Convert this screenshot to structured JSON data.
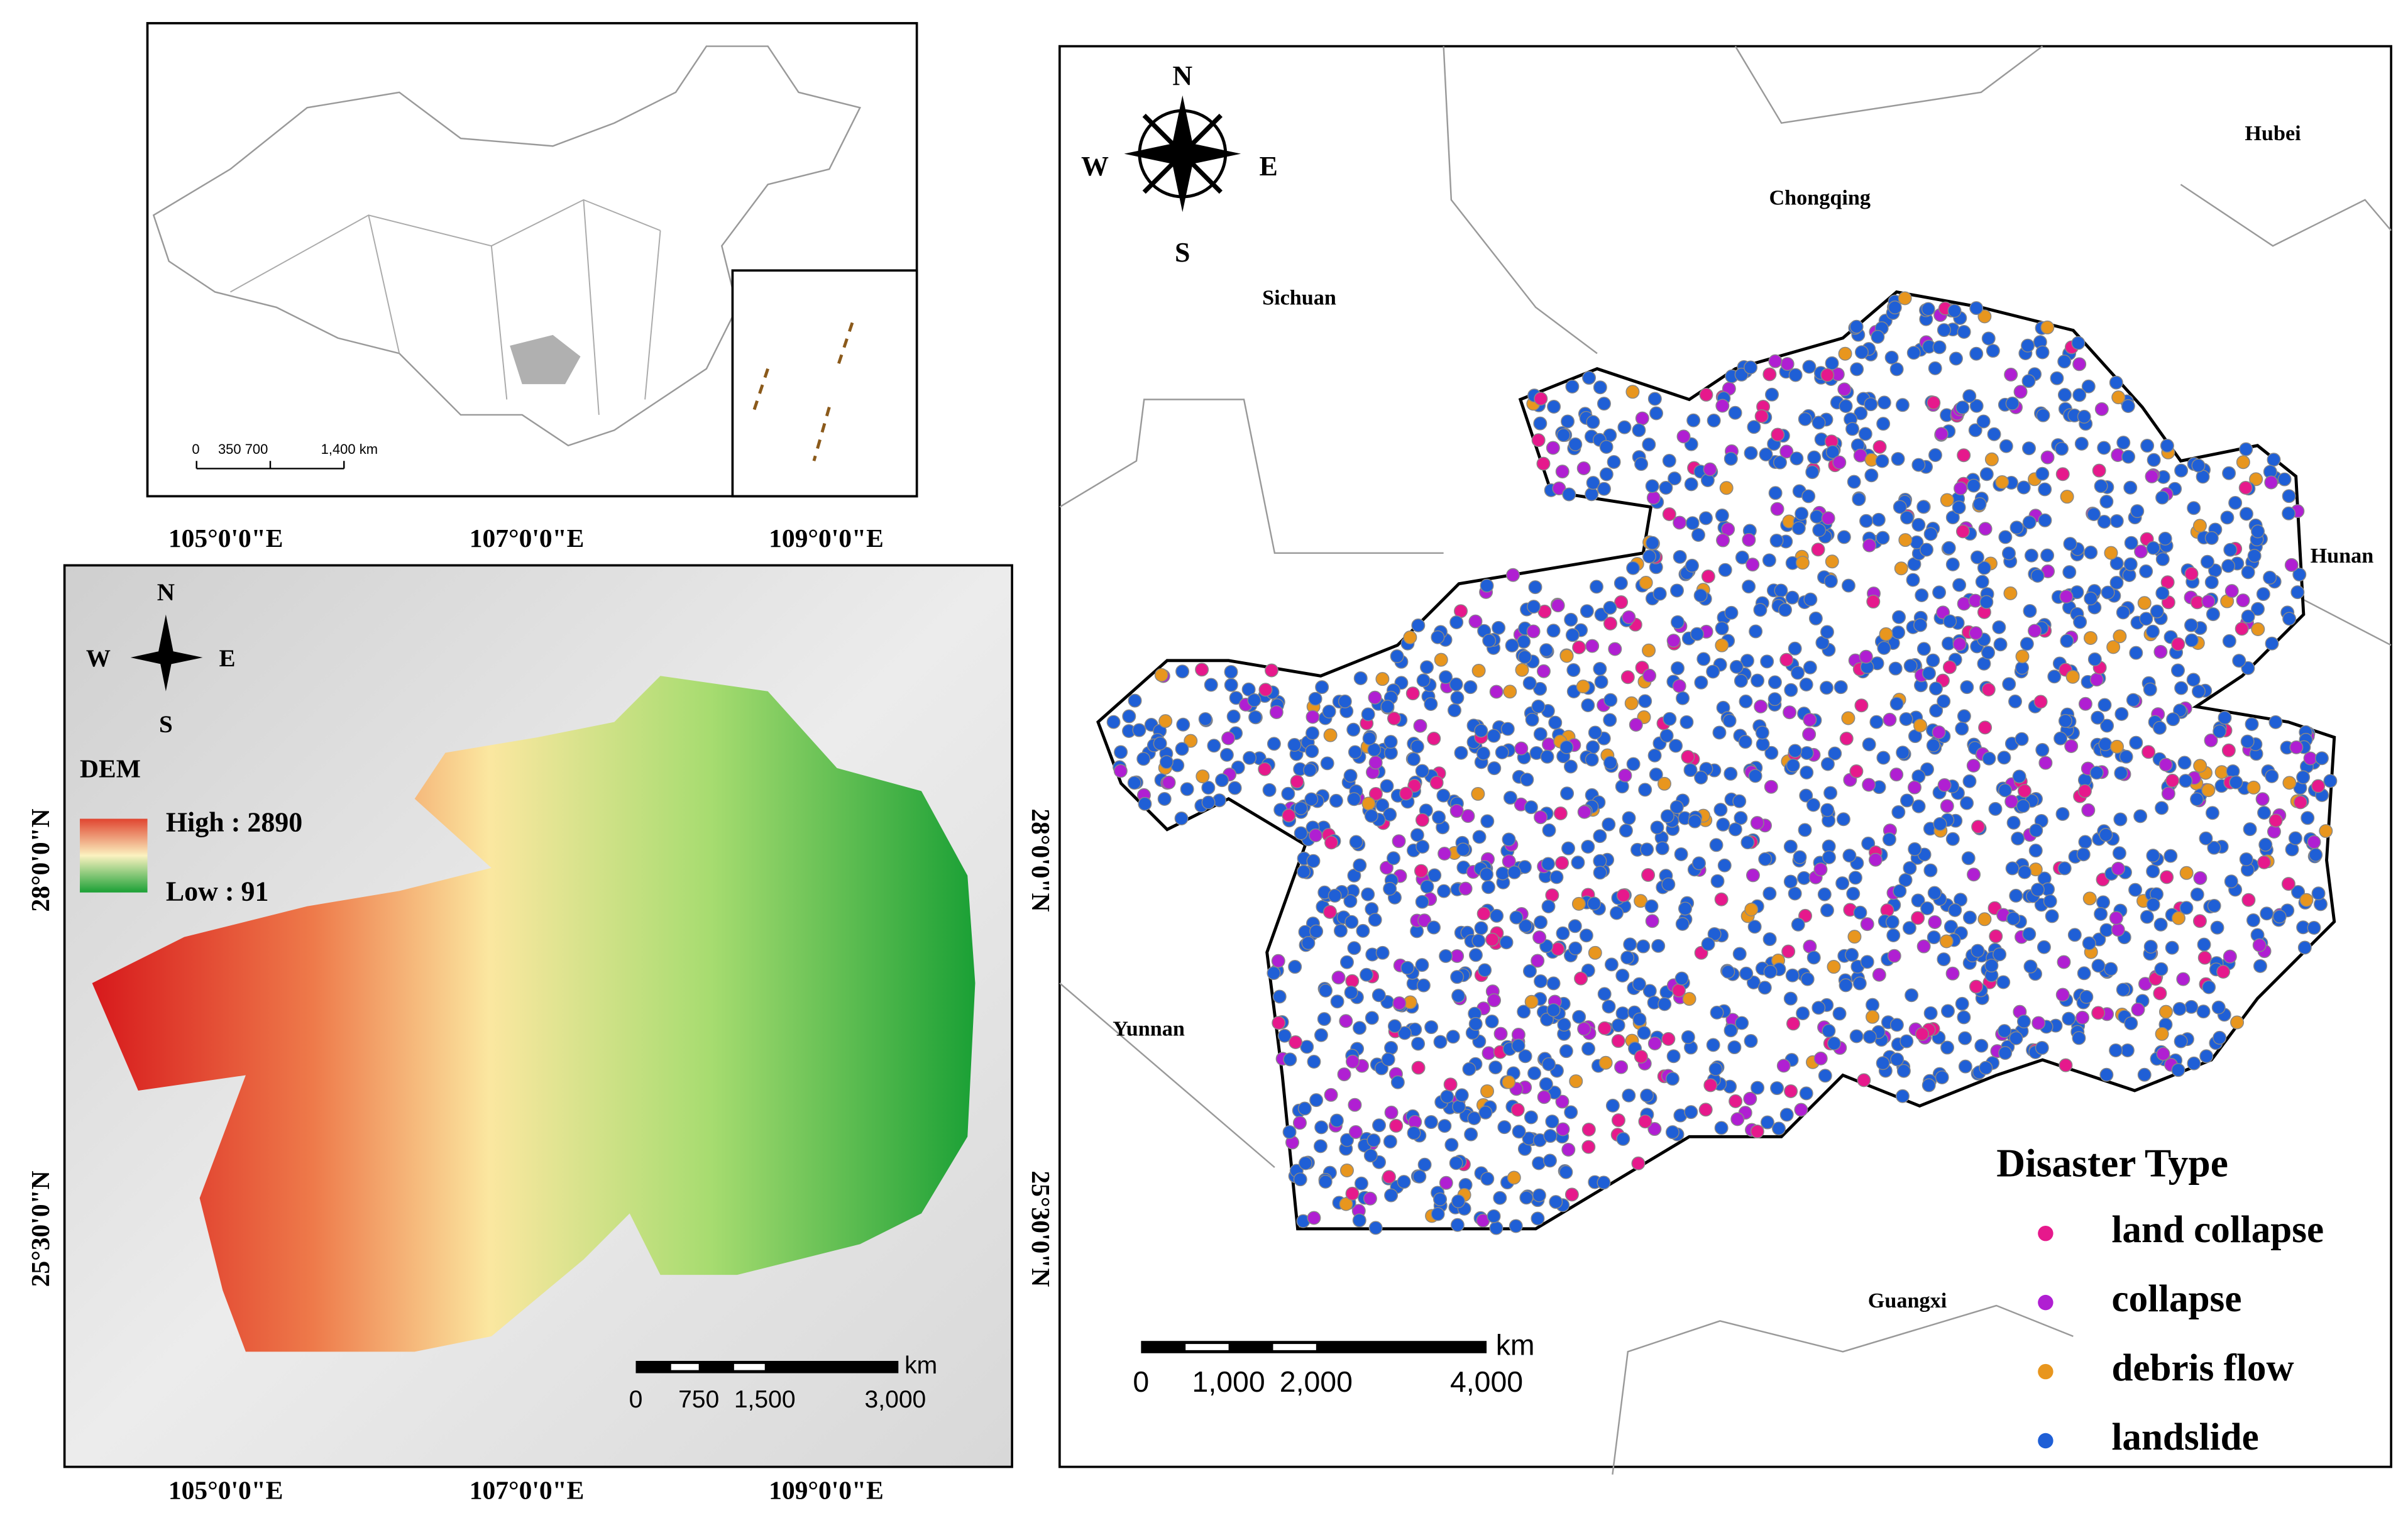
{
  "inset": {
    "scale_labels": [
      "0",
      "350 700",
      "1,400 km"
    ]
  },
  "dem_map": {
    "top_lon_labels": [
      "105°0'0\"E",
      "107°0'0\"E",
      "109°0'0\"E"
    ],
    "bottom_lon_labels": [
      "105°0'0\"E",
      "107°0'0\"E",
      "109°0'0\"E"
    ],
    "left_lat_labels": [
      "28°0'0\"N",
      "25°30'0\"N"
    ],
    "right_lat_labels": [
      "28°0'0\"N",
      "25°30'0\"N"
    ],
    "compass": {
      "n": "N",
      "e": "E",
      "s": "S",
      "w": "W"
    },
    "legend": {
      "title": "DEM",
      "high": "High : 2890",
      "low": "Low : 91"
    },
    "scale_labels": [
      "0",
      "750",
      "1,500",
      "3,000"
    ],
    "scale_unit": "km"
  },
  "disaster_map": {
    "compass": {
      "n": "N",
      "e": "E",
      "s": "S",
      "w": "W"
    },
    "regions": [
      "Chongqing",
      "Hubei",
      "Sichuan",
      "Hunan",
      "Yunnan",
      "Guangxi"
    ],
    "legend": {
      "title": "Disaster Type",
      "items": [
        {
          "name": "land collapse",
          "color": "#e6198c"
        },
        {
          "name": "collapse",
          "color": "#b01fd2"
        },
        {
          "name": "debris flow",
          "color": "#e8961e"
        },
        {
          "name": "landslide",
          "color": "#1f5fd6"
        }
      ]
    },
    "scale_labels": [
      "0",
      "1,000",
      "2,000",
      "4,000"
    ],
    "scale_unit": "km"
  }
}
